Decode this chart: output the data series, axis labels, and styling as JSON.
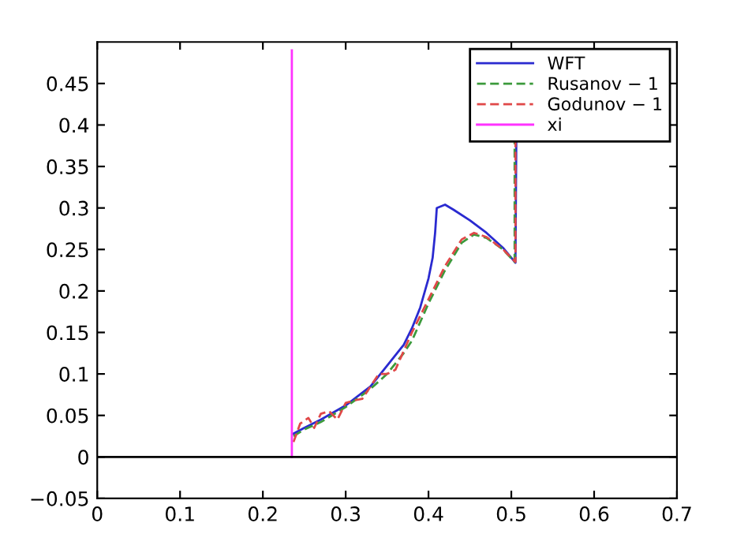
{
  "chart_data": {
    "type": "line",
    "xlim": [
      0,
      0.7
    ],
    "ylim": [
      -0.05,
      0.5
    ],
    "xticks": [
      0,
      0.1,
      0.2,
      0.3,
      0.4,
      0.5,
      0.6,
      0.7
    ],
    "yticks": [
      {
        "value": -0.05,
        "label": "−0.05"
      },
      0,
      0.05,
      0.1,
      0.15,
      0.2,
      0.25,
      0.3,
      0.35,
      0.4,
      0.45
    ],
    "grid": false,
    "legend": "top right",
    "ref_lines": [
      {
        "axis": "y",
        "value": 0,
        "color": "#000000"
      }
    ],
    "series": [
      {
        "name": "WFT",
        "color": "#2a2ad0",
        "line_style": "solid",
        "x": [
          0.237,
          0.25,
          0.27,
          0.3,
          0.33,
          0.35,
          0.37,
          0.38,
          0.39,
          0.4,
          0.405,
          0.408,
          0.41,
          0.42,
          0.43,
          0.45,
          0.47,
          0.49,
          0.505,
          0.506
        ],
        "values": [
          0.028,
          0.035,
          0.045,
          0.062,
          0.085,
          0.11,
          0.135,
          0.155,
          0.18,
          0.215,
          0.24,
          0.27,
          0.3,
          0.304,
          0.298,
          0.285,
          0.27,
          0.252,
          0.234,
          0.38
        ]
      },
      {
        "name": "Rusanov − 1",
        "color": "#3c9a3c",
        "line_style": "dashed",
        "x": [
          0.237,
          0.25,
          0.27,
          0.3,
          0.33,
          0.35,
          0.37,
          0.38,
          0.4,
          0.42,
          0.44,
          0.455,
          0.47,
          0.49,
          0.504,
          0.504
        ],
        "values": [
          0.025,
          0.033,
          0.042,
          0.06,
          0.082,
          0.1,
          0.125,
          0.14,
          0.185,
          0.225,
          0.258,
          0.268,
          0.264,
          0.25,
          0.235,
          0.38
        ]
      },
      {
        "name": "Godunov − 1",
        "color": "#e04848",
        "line_style": "dashed",
        "x": [
          0.237,
          0.245,
          0.255,
          0.262,
          0.27,
          0.28,
          0.29,
          0.3,
          0.31,
          0.32,
          0.34,
          0.35,
          0.36,
          0.38,
          0.4,
          0.42,
          0.44,
          0.455,
          0.47,
          0.49,
          0.505,
          0.505
        ],
        "values": [
          0.018,
          0.04,
          0.047,
          0.035,
          0.052,
          0.055,
          0.045,
          0.065,
          0.068,
          0.07,
          0.1,
          0.1,
          0.105,
          0.15,
          0.19,
          0.23,
          0.262,
          0.27,
          0.265,
          0.25,
          0.235,
          0.38
        ]
      },
      {
        "name": "xi",
        "color": "#ff33ff",
        "line_style": "solid",
        "x": [
          0.235,
          0.235
        ],
        "values": [
          0,
          0.49
        ]
      }
    ]
  }
}
